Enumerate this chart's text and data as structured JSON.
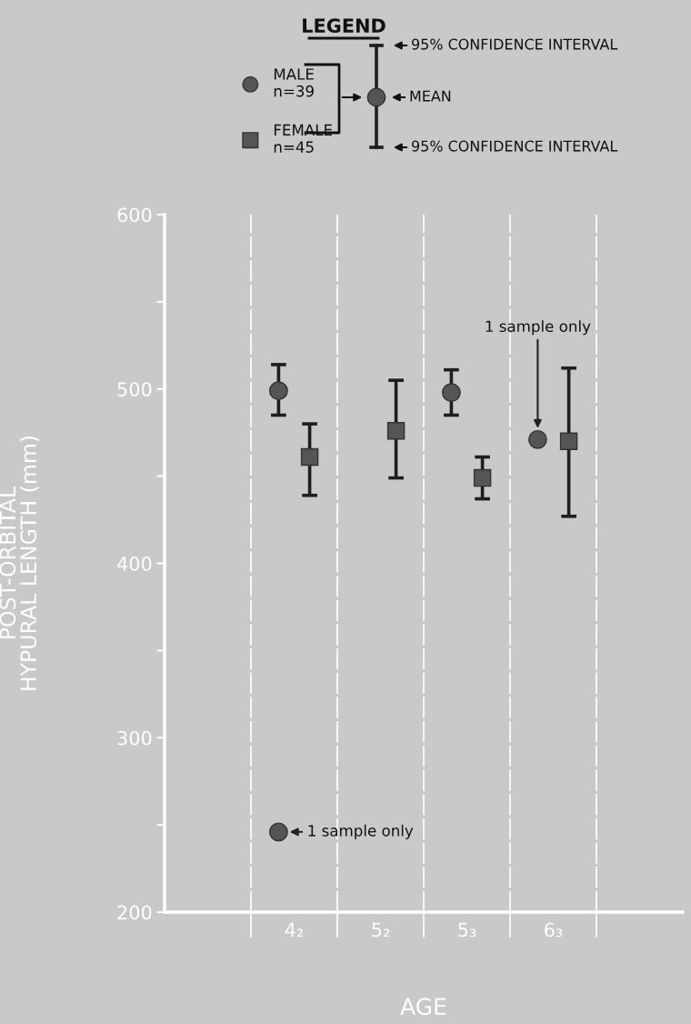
{
  "chart_data": {
    "type": "scatter",
    "legend_title": "LEGEND",
    "ylabel": "POST-ORBITAL\nHYPURAL LENGTH (mm)",
    "xlabel": "AGE",
    "categories": [
      null,
      "4₂",
      "5₂",
      "5₃",
      "6₃",
      null
    ],
    "ylim": [
      200,
      600
    ],
    "yticks": [
      200,
      {
        "value": 250,
        "label": null
      },
      300,
      {
        "value": 350,
        "label": null
      },
      400,
      {
        "value": 450,
        "label": null
      },
      500,
      {
        "value": 550,
        "label": null
      },
      600
    ],
    "series": [
      {
        "name": "MALE\nn=39",
        "color": "#555555",
        "marker": "circle",
        "values": [
          null,
          499,
          null,
          498,
          471,
          null
        ],
        "errors": [
          null,
          [
            485,
            514
          ],
          null,
          [
            485,
            511
          ],
          null,
          null
        ]
      },
      {
        "name": "FEMALE\nn=45",
        "color": "#555555",
        "marker": "square",
        "values": [
          null,
          461,
          476,
          449,
          470,
          null
        ],
        "errors": [
          null,
          [
            439,
            480
          ],
          [
            449,
            505
          ],
          [
            437,
            461
          ],
          [
            427,
            512
          ],
          null
        ]
      },
      {
        "color": "#555555",
        "marker": "circle",
        "x": [
          "4₂"
        ],
        "values": [
          246
        ]
      }
    ],
    "annotations": [
      "95% CONFIDENCE INTERVAL",
      "MEAN",
      "95% CONFIDENCE INTERVAL",
      {
        "text": "1 sample only",
        "x": "4₂",
        "y": 246
      },
      "1 sample only"
    ],
    "grid": "x",
    "legend": "top"
  }
}
